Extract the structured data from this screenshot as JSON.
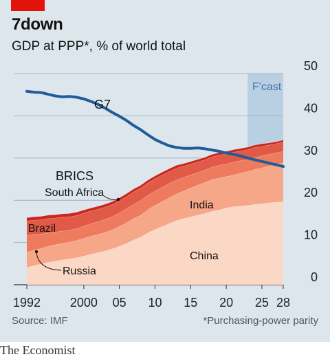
{
  "header": {
    "title": "7down",
    "subtitle": "GDP at PPP*, % of world total"
  },
  "footer": {
    "source": "Source: IMF",
    "footnote": "*Purchasing-power parity",
    "brand": "The Economist"
  },
  "colors": {
    "background": "#dde6ec",
    "g7": "#1f5c99",
    "china": "#fbd7c5",
    "india": "#f5a788",
    "russia": "#ef7b5e",
    "brazil": "#e05a47",
    "south_africa": "#c8271f",
    "forecast": "#a9c6de",
    "red_tag": "#e3120b"
  },
  "chart_data": {
    "type": "area",
    "title": "7down",
    "subtitle": "GDP at PPP*, % of world total",
    "xlim": [
      1992,
      2028
    ],
    "ylim": [
      0,
      50
    ],
    "x_ticks": [
      {
        "x": 1992,
        "label": "1992"
      },
      {
        "x": 2000,
        "label": "2000"
      },
      {
        "x": 2005,
        "label": "05"
      },
      {
        "x": 2010,
        "label": "10"
      },
      {
        "x": 2015,
        "label": "15"
      },
      {
        "x": 2020,
        "label": "20"
      },
      {
        "x": 2025,
        "label": "25"
      },
      {
        "x": 2028,
        "label": "28"
      }
    ],
    "y_ticks": [
      0,
      10,
      20,
      30,
      40,
      50
    ],
    "grid": true,
    "forecast": {
      "start": 2023,
      "end": 2028,
      "label": "F'cast"
    },
    "x": [
      1992,
      1993,
      1994,
      1995,
      1996,
      1997,
      1998,
      1999,
      2000,
      2001,
      2002,
      2003,
      2004,
      2005,
      2006,
      2007,
      2008,
      2009,
      2010,
      2011,
      2012,
      2013,
      2014,
      2015,
      2016,
      2017,
      2018,
      2019,
      2020,
      2021,
      2022,
      2023,
      2024,
      2025,
      2026,
      2027,
      2028
    ],
    "stacked_series": [
      {
        "name": "China",
        "values": [
          4.1,
          4.5,
          4.9,
          5.3,
          5.6,
          5.9,
          6.1,
          6.4,
          6.8,
          7.2,
          7.6,
          8.0,
          8.5,
          9.1,
          9.8,
          10.6,
          11.3,
          12.3,
          13.1,
          13.8,
          14.5,
          15.2,
          15.7,
          16.1,
          16.5,
          16.9,
          17.4,
          17.7,
          18.2,
          18.5,
          18.6,
          18.8,
          19.0,
          19.2,
          19.4,
          19.6,
          19.7
        ]
      },
      {
        "name": "India",
        "values": [
          3.6,
          3.7,
          3.7,
          3.8,
          3.9,
          3.9,
          4.0,
          4.1,
          4.2,
          4.3,
          4.3,
          4.4,
          4.5,
          4.7,
          4.9,
          5.1,
          5.2,
          5.5,
          5.7,
          5.9,
          6.1,
          6.3,
          6.5,
          6.8,
          7.1,
          7.3,
          7.5,
          7.6,
          7.4,
          7.5,
          7.8,
          8.0,
          8.3,
          8.5,
          8.7,
          8.9,
          9.2
        ]
      },
      {
        "name": "Russia",
        "values": [
          4.0,
          3.7,
          3.4,
          3.2,
          3.0,
          2.9,
          2.8,
          2.8,
          2.9,
          3.0,
          3.0,
          3.1,
          3.1,
          3.2,
          3.3,
          3.4,
          3.5,
          3.4,
          3.4,
          3.4,
          3.4,
          3.3,
          3.2,
          3.1,
          3.0,
          3.0,
          3.0,
          3.0,
          3.0,
          3.0,
          3.0,
          2.9,
          2.9,
          2.8,
          2.8,
          2.7,
          2.7
        ]
      },
      {
        "name": "Brazil",
        "values": [
          3.4,
          3.4,
          3.4,
          3.4,
          3.3,
          3.3,
          3.2,
          3.1,
          3.1,
          3.0,
          3.0,
          2.9,
          2.9,
          2.9,
          2.9,
          2.9,
          2.9,
          2.9,
          2.9,
          2.9,
          2.8,
          2.8,
          2.7,
          2.6,
          2.5,
          2.4,
          2.4,
          2.4,
          2.4,
          2.4,
          2.3,
          2.3,
          2.3,
          2.3,
          2.2,
          2.2,
          2.2
        ]
      },
      {
        "name": "South Africa",
        "values": [
          0.8,
          0.8,
          0.8,
          0.8,
          0.8,
          0.8,
          0.8,
          0.8,
          0.7,
          0.7,
          0.7,
          0.7,
          0.7,
          0.7,
          0.7,
          0.7,
          0.7,
          0.7,
          0.7,
          0.7,
          0.7,
          0.7,
          0.6,
          0.6,
          0.6,
          0.6,
          0.6,
          0.6,
          0.6,
          0.6,
          0.6,
          0.6,
          0.6,
          0.6,
          0.5,
          0.5,
          0.5
        ]
      }
    ],
    "g7": {
      "name": "G7",
      "values": [
        45.8,
        45.6,
        45.5,
        45.1,
        44.7,
        44.5,
        44.6,
        44.4,
        44.0,
        43.4,
        42.7,
        41.8,
        40.8,
        39.9,
        38.9,
        37.7,
        36.7,
        35.5,
        34.4,
        33.6,
        32.9,
        32.5,
        32.3,
        32.3,
        32.4,
        32.2,
        31.9,
        31.6,
        31.2,
        30.9,
        30.5,
        30.0,
        29.6,
        29.2,
        28.8,
        28.4,
        28.0
      ]
    },
    "labels": {
      "g7": "G7",
      "brics": "BRICS",
      "south_africa": "South Africa",
      "india": "India",
      "brazil": "Brazil",
      "china": "China",
      "russia": "Russia"
    }
  }
}
